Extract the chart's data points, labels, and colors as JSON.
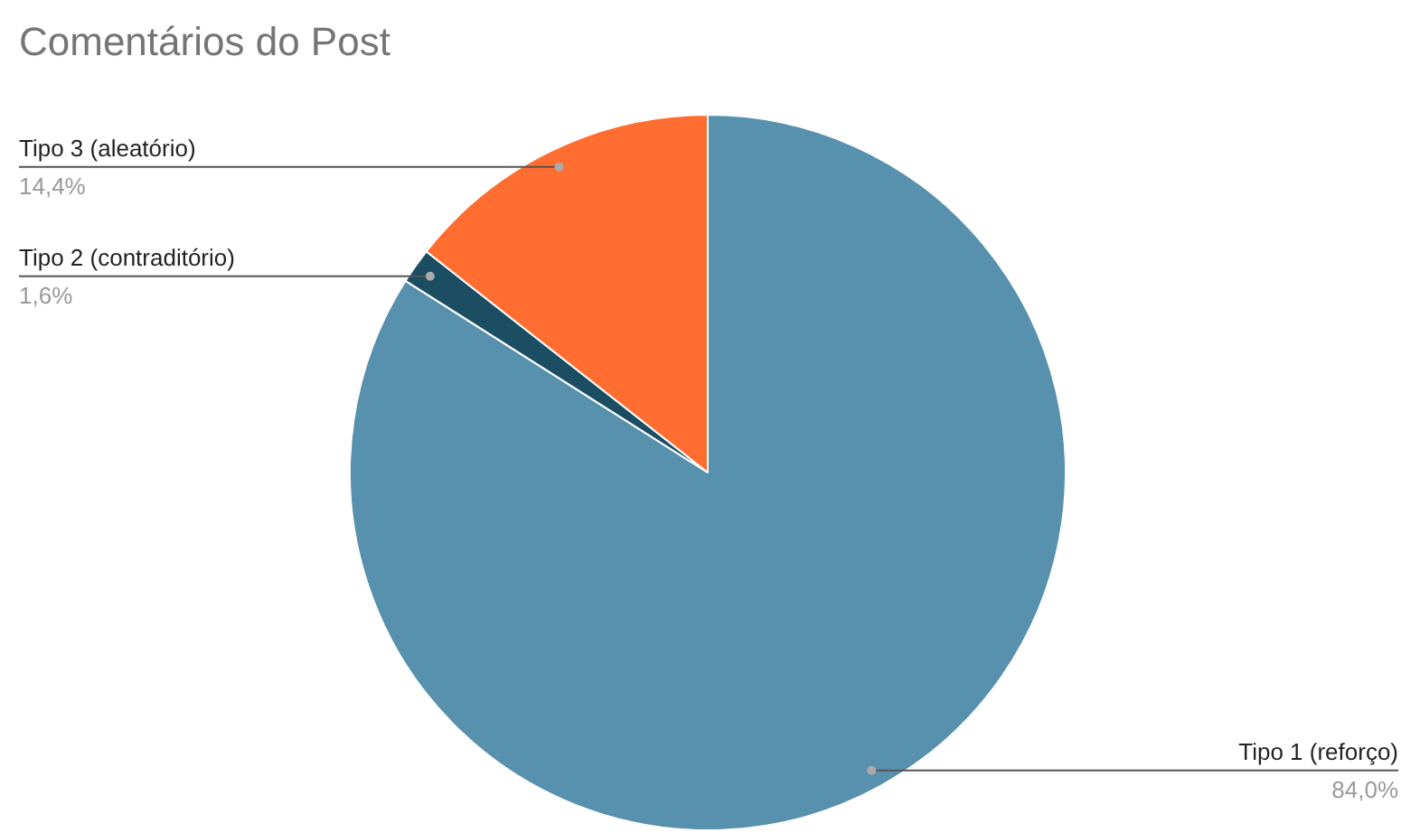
{
  "chart_data": {
    "type": "pie",
    "title": "Comentários do Post",
    "categories": [
      "Tipo 1 (reforço)",
      "Tipo 2 (contraditório)",
      "Tipo 3 (aleatório)"
    ],
    "values": [
      84.0,
      1.6,
      14.4
    ],
    "colors": [
      "#5891ad",
      "#1c4e63",
      "#ff6d31"
    ],
    "value_labels": [
      "84,0%",
      "1,6%",
      "14,4%"
    ]
  }
}
